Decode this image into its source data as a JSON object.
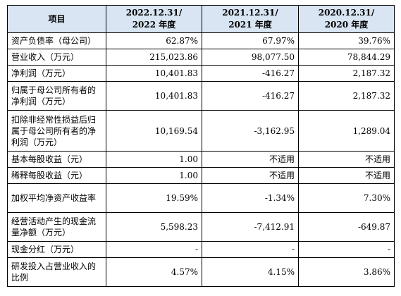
{
  "header": {
    "item": "项目",
    "periods": [
      {
        "date": "2022.12.31/",
        "year": "2022 年度"
      },
      {
        "date": "2021.12.31/",
        "year": "2021 年度"
      },
      {
        "date": "2020.12.31/",
        "year": "2020 年度"
      }
    ]
  },
  "rows": [
    {
      "label": "资产负债率（母公司）",
      "values": [
        "62.87%",
        "67.97%",
        "39.76%"
      ]
    },
    {
      "label": "营业收入（万元）",
      "values": [
        "215,023.86",
        "98,077.50",
        "78,844.29"
      ]
    },
    {
      "label": "净利润（万元）",
      "values": [
        "10,401.83",
        "-416.27",
        "2,187.32"
      ]
    },
    {
      "label": "归属于母公司所有者的净利润（万元）",
      "values": [
        "10,401.83",
        "-416.27",
        "2,187.32"
      ]
    },
    {
      "label": "扣除非经常性损益后归属于母公司所有者的净利润（万元）",
      "values": [
        "10,169.54",
        "-3,162.95",
        "1,289.04"
      ]
    },
    {
      "label": "基本每股收益（元）",
      "values": [
        "1.00",
        "不适用",
        "不适用"
      ]
    },
    {
      "label": "稀释每股收益（元）",
      "values": [
        "1.00",
        "不适用",
        "不适用"
      ]
    },
    {
      "label": "加权平均净资产收益率",
      "values": [
        "19.59%",
        "-1.34%",
        "7.30%"
      ]
    },
    {
      "label": "经营活动产生的现金流量净额（万元）",
      "values": [
        "5,598.23",
        "-7,412.91",
        "-649.87"
      ]
    },
    {
      "label": "现金分红（万元）",
      "values": [
        "-",
        "-",
        "-"
      ]
    },
    {
      "label": "研发投入占营业收入的比例",
      "values": [
        "4.57%",
        "4.15%",
        "3.86%"
      ]
    }
  ]
}
